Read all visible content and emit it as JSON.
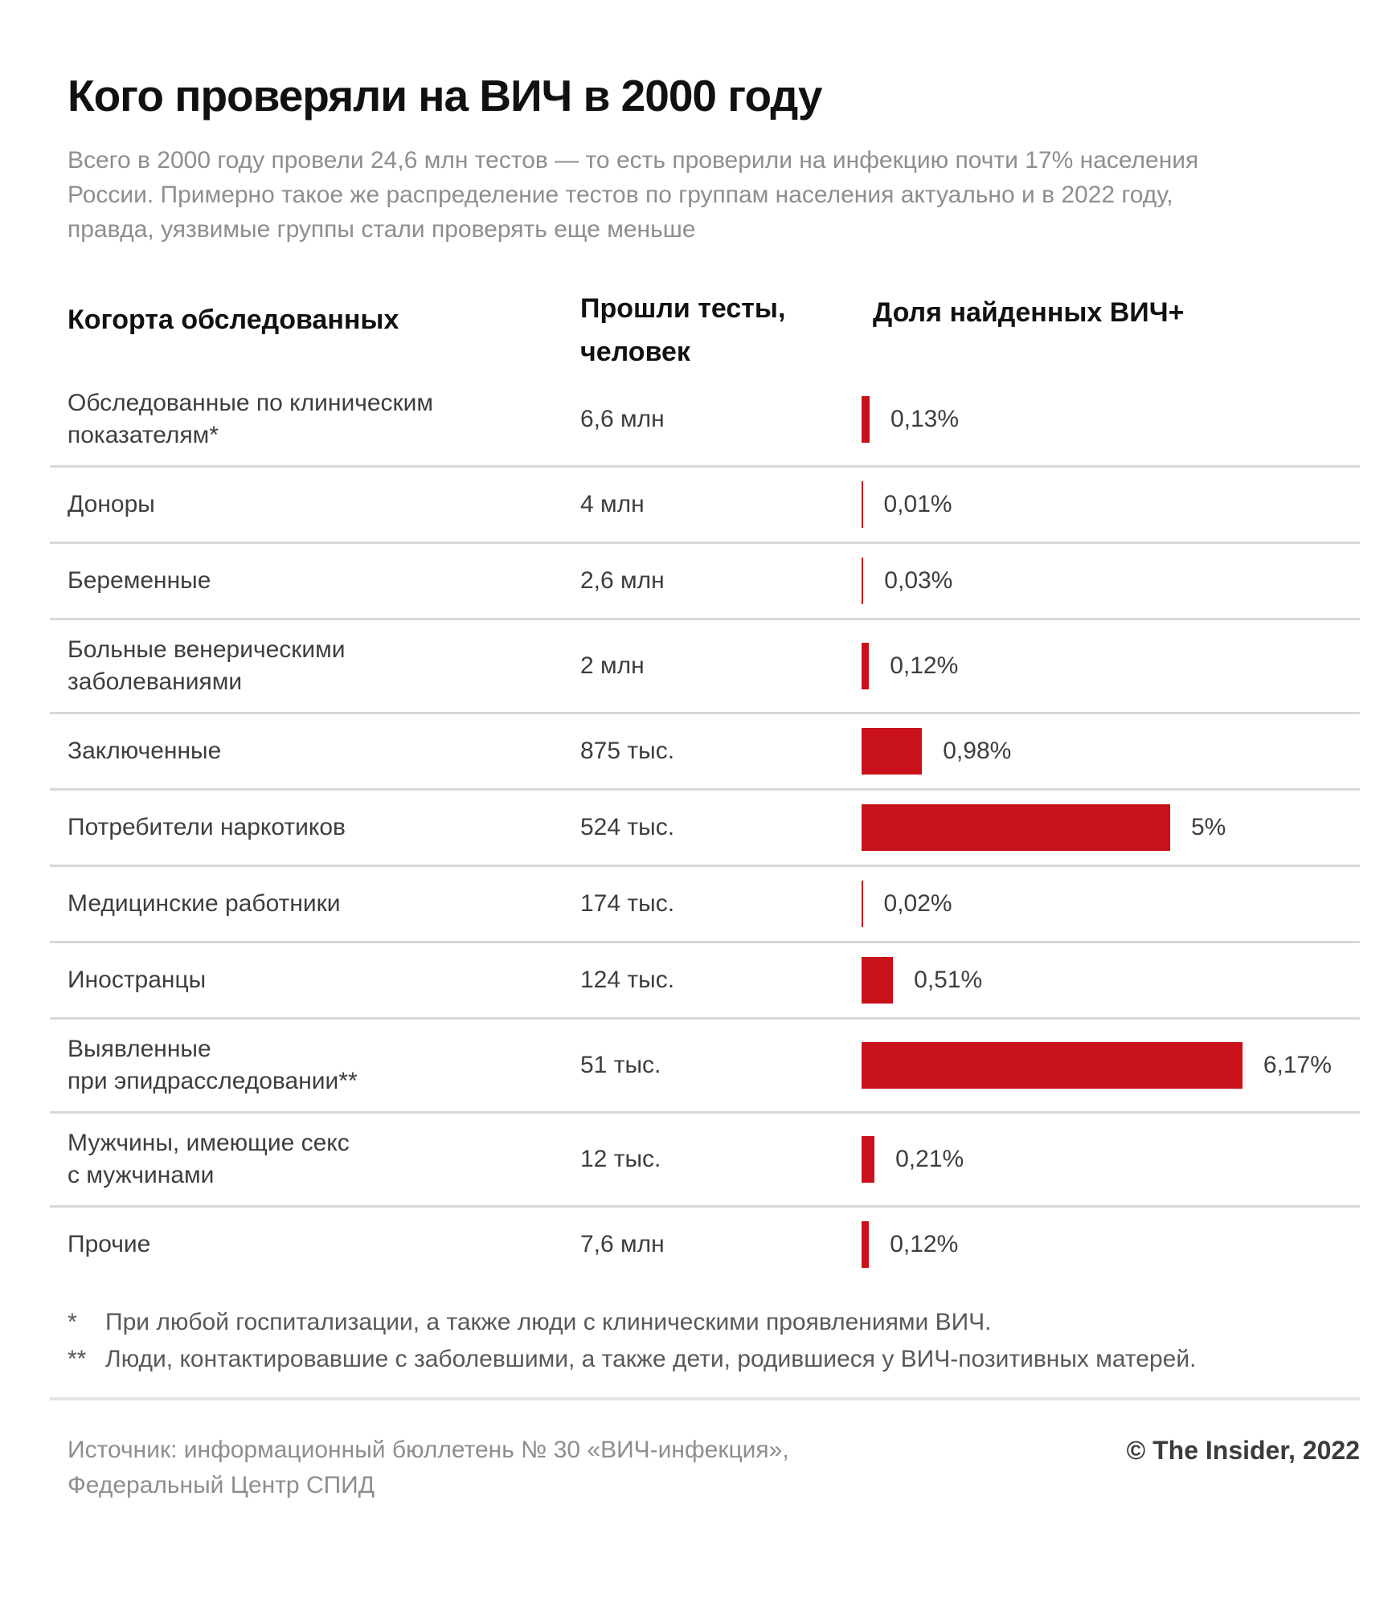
{
  "page": {
    "title": "Кого проверяли на ВИЧ в 2000 году",
    "subtitle": "Всего в 2000 году провели 24,6 млн тестов — то есть проверили на инфекцию почти 17% населения\nРоссии. Примерно такое же распределение тестов по группам населения актуально и в 2022 году,\nправда, уязвимые группы стали проверять еще меньше"
  },
  "table": {
    "header_cohort": "Когорта обследованных",
    "header_tested": "Прошли тесты,\nчеловек",
    "header_share": "Доля найденных ВИЧ+"
  },
  "chart_data": {
    "type": "bar",
    "orientation": "horizontal",
    "title": "Кого проверяли на ВИЧ в 2000 году",
    "categories": [
      "Обследованные по клиническим\nпоказателям*",
      "Доноры",
      "Беременные",
      "Больные венерическими\nзаболеваниями",
      "Заключенные",
      "Потребители наркотиков",
      "Медицинские работники",
      "Иностранцы",
      "Выявленные\nпри эпидрасследовании**",
      "Мужчины, имеющие секс\nс мужчинами",
      "Прочие"
    ],
    "series": [
      {
        "name": "Прошли тесты, человек",
        "values": [
          "6,6 млн",
          "4 млн",
          "2,6 млн",
          "2 млн",
          "875 тыс.",
          "524 тыс.",
          "174 тыс.",
          "124 тыс.",
          "51 тыс.",
          "12 тыс.",
          "7,6 млн"
        ]
      },
      {
        "name": "Доля найденных ВИЧ+",
        "unit": "%",
        "values": [
          0.13,
          0.01,
          0.03,
          0.12,
          0.98,
          5,
          0.02,
          0.51,
          6.17,
          0.21,
          0.12
        ],
        "labels": [
          "0,13%",
          "0,01%",
          "0,03%",
          "0,12%",
          "0,98%",
          "5%",
          "0,02%",
          "0,51%",
          "6,17%",
          "0,21%",
          "0,12%"
        ]
      }
    ],
    "xlim": [
      0,
      6.6
    ],
    "grid": false,
    "legend": false,
    "bar_color": "#c9111b"
  },
  "footnotes": [
    {
      "marker": "*",
      "text": "При любой госпитализации, а также люди с клиническими проявлениями ВИЧ."
    },
    {
      "marker": "**",
      "text": "Люди, контактировавшие с заболевшими, а также дети, родившиеся у ВИЧ-позитивных матерей."
    }
  ],
  "source": {
    "text": "Источник: информационный бюллетень № 30 «ВИЧ-инфекция»,\nФедеральный Центр СПИД",
    "copyright": "© The Insider, 2022"
  },
  "colors": {
    "bar_red": "#c9111b",
    "heading_text": "#111111",
    "body_text": "#3e3e3e",
    "muted_text": "#8e8e8e",
    "footnote_text": "#595959",
    "separator": "#d8d8d8",
    "background": "#ffffff"
  }
}
